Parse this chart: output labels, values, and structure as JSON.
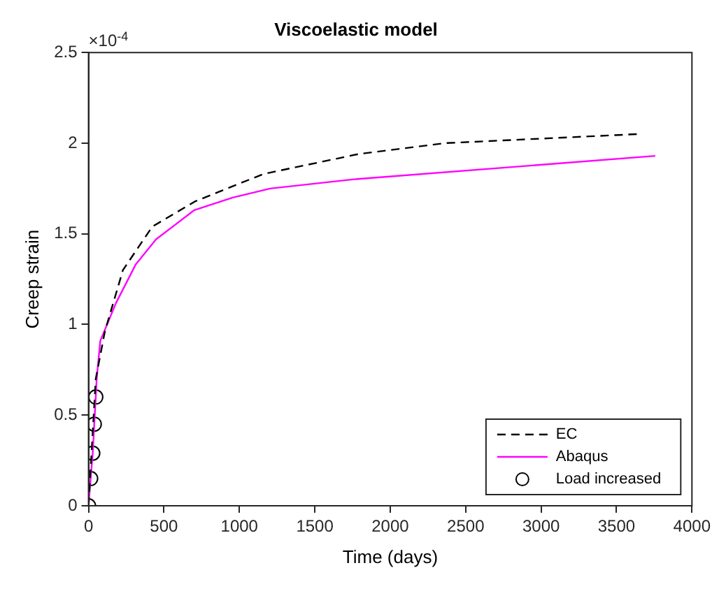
{
  "chart_data": {
    "type": "line",
    "title": "Viscoelastic model",
    "xlabel": "Time (days)",
    "ylabel": "Creep strain",
    "annotations": [
      "×10$^{-4}$"
    ],
    "xlim": [
      0,
      4000
    ],
    "xticks": [
      0,
      500,
      1000,
      1500,
      2000,
      2500,
      3000,
      3500,
      4000
    ],
    "ylim": [
      0,
      2.5
    ],
    "yticks": [
      0,
      0.5,
      1,
      1.5,
      2,
      2.5
    ],
    "grid": false,
    "legend": "bottom right",
    "series": [
      {
        "name": "EC",
        "color": "#000000",
        "line_style": "dashed",
        "marker": "none",
        "x": [
          0,
          48,
          108,
          228,
          423,
          709,
          1159,
          1790,
          2360,
          3636
        ],
        "values": [
          0,
          0.7,
          0.96,
          1.3,
          1.54,
          1.68,
          1.83,
          1.94,
          2.0,
          2.05
        ]
      },
      {
        "name": "Abaqus",
        "color": "#ff00ff",
        "line_style": "solid",
        "marker": "none",
        "x": [
          0,
          14,
          28,
          38,
          48,
          54,
          78,
          183,
          312,
          448,
          700,
          955,
          1204,
          1750,
          3757
        ],
        "values": [
          0,
          0.15,
          0.29,
          0.45,
          0.6,
          0.7,
          0.91,
          1.12,
          1.33,
          1.47,
          1.63,
          1.7,
          1.75,
          1.8,
          1.93
        ]
      },
      {
        "name": "Load increased",
        "type": "scatter",
        "color": "#000000",
        "marker": "circle",
        "x": [
          0,
          14,
          28,
          38,
          48
        ],
        "values": [
          0,
          0.15,
          0.29,
          0.45,
          0.6
        ]
      }
    ]
  }
}
